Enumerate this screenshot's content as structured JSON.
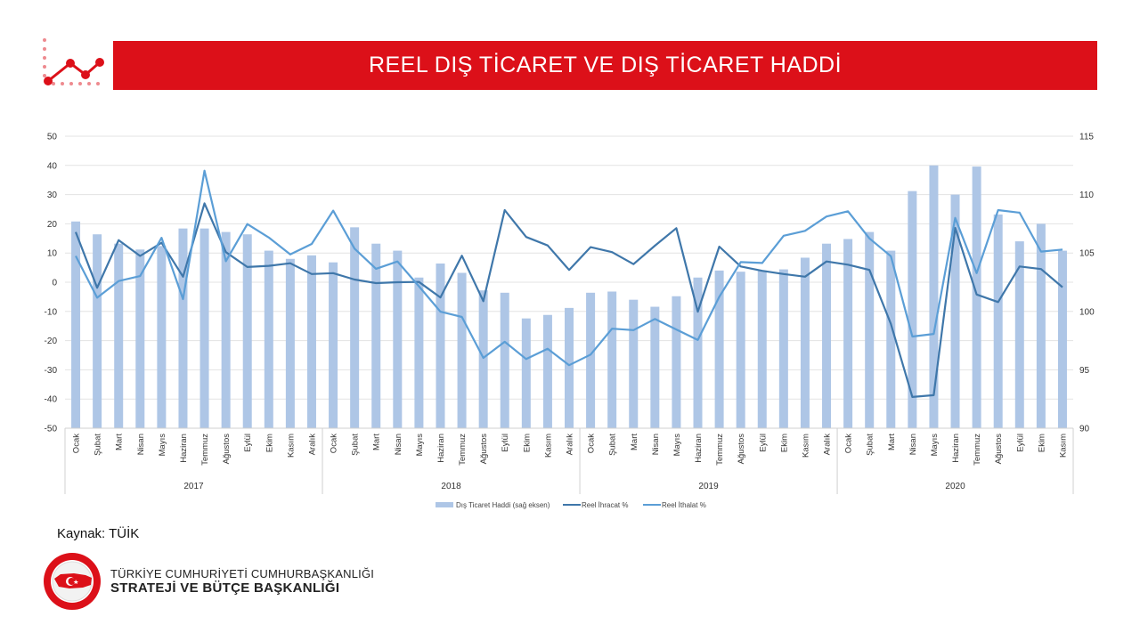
{
  "header": {
    "title": "REEL DIŞ TİCARET VE DIŞ TİCARET HADDİ"
  },
  "source": "Kaynak: TÜİK",
  "organization": {
    "line1": "TÜRKİYE CUMHURİYETİ CUMHURBAŞKANLIĞI",
    "line2": "STRATEJİ VE BÜTÇE BAŞKANLIĞI",
    "seal_text": "T.C. CUMHURBAŞKANLIĞI STRATEJİ VE BÜTÇE BAŞKANLIĞI"
  },
  "colors": {
    "accent": "#dc1019",
    "bar": "#aec6e6",
    "export_line": "#3f77aa",
    "import_line": "#5b9ed6"
  },
  "chart_data": {
    "type": "bar+line",
    "title": "",
    "left_axis": {
      "ylim": [
        -50,
        50
      ],
      "ticks": [
        50,
        40,
        30,
        20,
        10,
        0,
        -10,
        -20,
        -30,
        -40,
        -50
      ]
    },
    "right_axis": {
      "ylim": [
        90,
        115
      ],
      "ticks": [
        115,
        110,
        105,
        100,
        95,
        90
      ]
    },
    "grid": true,
    "legend_placement": "bottom",
    "years": [
      {
        "label": "2017",
        "months": 12
      },
      {
        "label": "2018",
        "months": 12
      },
      {
        "label": "2019",
        "months": 12
      },
      {
        "label": "2020",
        "months": 11
      }
    ],
    "categories": [
      "Ocak",
      "Şubat",
      "Mart",
      "Nisan",
      "Mayıs",
      "Haziran",
      "Temmuz",
      "Ağustos",
      "Eylül",
      "Ekim",
      "Kasım",
      "Aralık",
      "Ocak",
      "Şubat",
      "Mart",
      "Nisan",
      "Mayıs",
      "Haziran",
      "Temmuz",
      "Ağustos",
      "Eylül",
      "Ekim",
      "Kasım",
      "Aralık",
      "Ocak",
      "Şubat",
      "Mart",
      "Nisan",
      "Mayıs",
      "Haziran",
      "Temmuz",
      "Ağustos",
      "Eylül",
      "Ekim",
      "Kasım",
      "Aralık",
      "Ocak",
      "Şubat",
      "Mart",
      "Nisan",
      "Mayıs",
      "Haziran",
      "Temmuz",
      "Ağustos",
      "Eylül",
      "Ekim",
      "Kasım"
    ],
    "series": [
      {
        "name": "Dış Ticaret Haddi (sağ eksen)",
        "type": "bar",
        "axis": "right",
        "values": [
          107.7,
          106.6,
          105.8,
          105.3,
          105.6,
          107.1,
          107.1,
          106.8,
          106.6,
          105.2,
          104.5,
          104.8,
          104.2,
          107.2,
          105.8,
          105.2,
          102.9,
          104.1,
          103.3,
          101.8,
          101.6,
          99.4,
          99.7,
          100.3,
          101.6,
          101.7,
          101.0,
          100.4,
          101.3,
          102.9,
          103.5,
          103.4,
          103.5,
          103.6,
          104.6,
          105.8,
          106.2,
          106.8,
          105.2,
          110.3,
          112.5,
          110.0,
          112.4,
          108.3,
          106.0,
          107.5,
          105.2
        ]
      },
      {
        "name": "Reel İhracat %",
        "type": "line",
        "axis": "left",
        "values": [
          17.2,
          -1.9,
          14.4,
          9.0,
          13.5,
          1.9,
          27.0,
          10.3,
          5.2,
          5.6,
          6.5,
          2.8,
          3.1,
          0.9,
          -0.3,
          0.0,
          0.1,
          -5.2,
          9.1,
          -6.5,
          24.7,
          15.5,
          12.6,
          4.2,
          12.0,
          10.3,
          6.2,
          12.5,
          18.5,
          -10.1,
          12.2,
          5.4,
          3.9,
          2.8,
          1.9,
          7.1,
          6.0,
          4.2,
          -14.3,
          -39.3,
          -38.7,
          18.6,
          -4.2,
          -6.8,
          5.4,
          4.5,
          -1.7
        ]
      },
      {
        "name": "Reel İthalat %",
        "type": "line",
        "axis": "left",
        "values": [
          9.0,
          -5.3,
          0.4,
          2.1,
          15.2,
          -5.8,
          38.2,
          7.2,
          19.9,
          15.3,
          9.5,
          13.1,
          24.5,
          11.5,
          4.6,
          7.1,
          -1.4,
          -10.1,
          -11.9,
          -25.9,
          -20.4,
          -26.3,
          -22.8,
          -28.4,
          -24.8,
          -15.9,
          -16.4,
          -12.6,
          -16.2,
          -19.8,
          -5.0,
          6.9,
          6.6,
          15.9,
          17.6,
          22.5,
          24.3,
          15.0,
          8.9,
          -18.6,
          -17.7,
          22.0,
          3.1,
          24.7,
          23.8,
          10.5,
          11.2
        ]
      }
    ]
  }
}
